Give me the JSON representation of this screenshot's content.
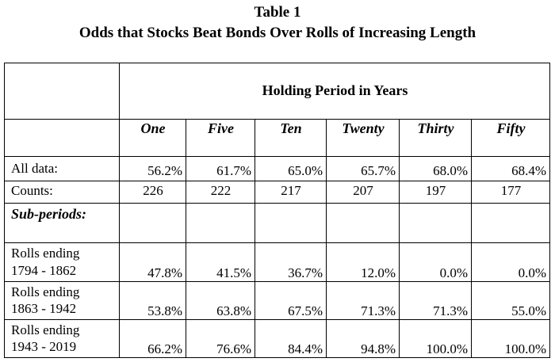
{
  "title": "Table 1",
  "subtitle": "Odds that Stocks Beat Bonds Over Rolls of Increasing Length",
  "group_header": "Holding Period in Years",
  "columns": [
    "One",
    "Five",
    "Ten",
    "Twenty",
    "Thirty",
    "Fifty"
  ],
  "rows": {
    "all_data": {
      "label": "All data:",
      "values": [
        "56.2%",
        "61.7%",
        "65.0%",
        "65.7%",
        "68.0%",
        "68.4%"
      ]
    },
    "counts": {
      "label": "Counts:",
      "values": [
        "226",
        "222",
        "217",
        "207",
        "197",
        "177"
      ]
    },
    "sub_periods_label": "Sub-periods:",
    "periods": [
      {
        "label1": "Rolls ending",
        "label2": "1794 - 1862",
        "values": [
          "47.8%",
          "41.5%",
          "36.7%",
          "12.0%",
          "0.0%",
          "0.0%"
        ]
      },
      {
        "label1": "Rolls ending",
        "label2": "1863 - 1942",
        "values": [
          "53.8%",
          "63.8%",
          "67.5%",
          "71.3%",
          "71.3%",
          "55.0%"
        ]
      },
      {
        "label1": "Rolls ending",
        "label2": "1943 - 2019",
        "values": [
          "66.2%",
          "76.6%",
          "84.4%",
          "94.8%",
          "100.0%",
          "100.0%"
        ]
      }
    ]
  }
}
